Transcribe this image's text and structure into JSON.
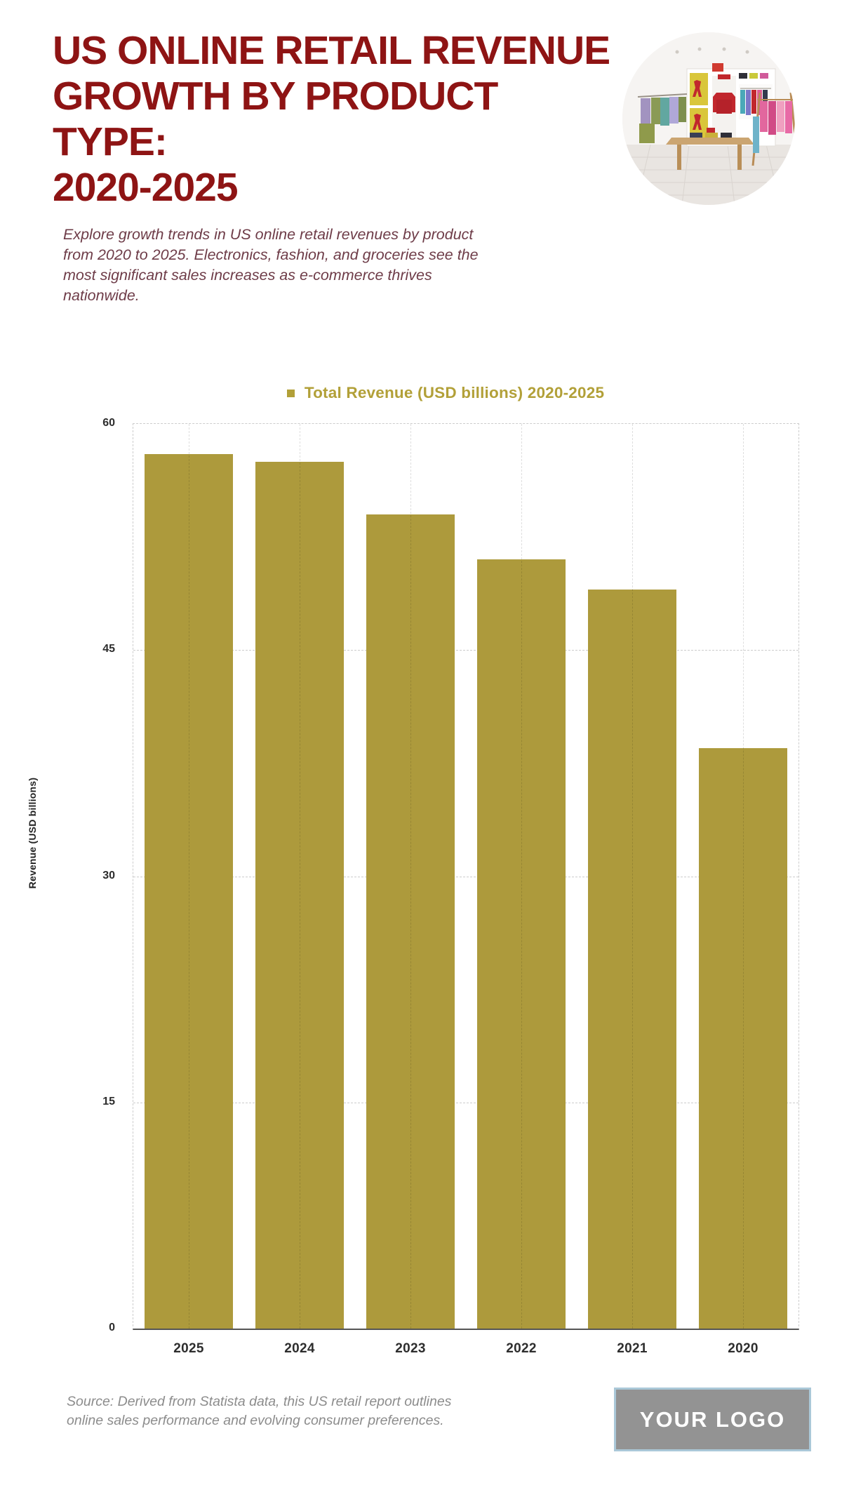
{
  "page": {
    "title": "US ONLINE RETAIL REVENUE\nGROWTH BY PRODUCT TYPE:\n2020-2025",
    "subtitle": "Explore growth trends in US online retail revenues by product\nfrom 2020 to 2025. Electronics, fashion, and groceries see the\nmost significant sales increases as e-commerce thrives\nnationwide.",
    "source_note": "Source: Derived from Statista data, this US retail report outlines\nonline sales performance and evolving consumer preferences.",
    "logo_text": "YOUR LOGO"
  },
  "hero_image": {
    "alt": "retail clothing store interior photo"
  },
  "colors": {
    "title_red": "#8e1414",
    "subtitle_plum": "#6e3c48",
    "bar_gold": "#ad9a3c",
    "legend_gold": "#b2a038",
    "axis_text": "#2d2d2d",
    "gridline_gray": "#cccccc",
    "source_gray": "#8c8c8c",
    "logo_bg": "#939393",
    "logo_border": "#aac8d8"
  },
  "chart_data": {
    "type": "bar",
    "legend": "Total Revenue (USD billions) 2020-2025",
    "categories": [
      "2025",
      "2024",
      "2023",
      "2022",
      "2021",
      "2020"
    ],
    "values": [
      58,
      57.5,
      54,
      51,
      49,
      38.5
    ],
    "ylabel": "Revenue (USD billions)",
    "xlabel": "",
    "ylim": [
      0,
      60
    ],
    "yticks": [
      0,
      15,
      30,
      45,
      60
    ],
    "grid": "dashed",
    "legend_position": "top-center",
    "bar_color": "#ad9a3c"
  }
}
